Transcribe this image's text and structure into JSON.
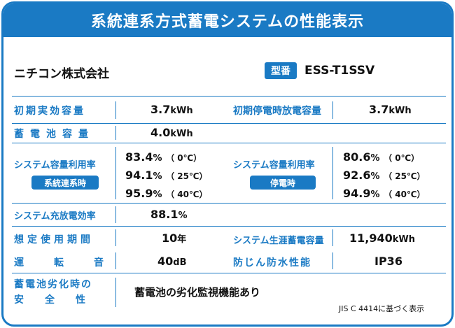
{
  "title": "系統連系方式蓄電システムの性能表示",
  "company": "ニチコン株式会社",
  "model": {
    "badge": "型番",
    "value": "ESS-T1SSV"
  },
  "initial_capacity": {
    "label": "初期実効容量",
    "value": "3.7",
    "unit": "kWh"
  },
  "initial_outage_capacity": {
    "label": "初期停電時放電容量",
    "value": "3.7",
    "unit": "kWh"
  },
  "storage_capacity": {
    "label": "蓄電池容量",
    "value": "4.0",
    "unit": "kWh"
  },
  "utilization_grid": {
    "label": "システム容量利用率",
    "badge": "系統連系時",
    "rows": [
      {
        "value": "83.4",
        "unit": "%",
        "temp": "（ 0℃）"
      },
      {
        "value": "94.1",
        "unit": "%",
        "temp": "（ 25℃）"
      },
      {
        "value": "95.9",
        "unit": "%",
        "temp": "（ 40℃）"
      }
    ]
  },
  "utilization_outage": {
    "label": "システム容量利用率",
    "badge": "停電時",
    "rows": [
      {
        "value": "80.6",
        "unit": "%",
        "temp": "（ 0℃）"
      },
      {
        "value": "92.6",
        "unit": "%",
        "temp": "（ 25℃）"
      },
      {
        "value": "94.9",
        "unit": "%",
        "temp": "（ 40℃）"
      }
    ]
  },
  "charge_efficiency": {
    "label": "システム充放電効率",
    "value": "88.1",
    "unit": "%"
  },
  "service_life": {
    "label": "想定使用期間",
    "value": "10",
    "unit": "年"
  },
  "lifetime_capacity": {
    "label": "システム生涯蓄電容量",
    "value": "11,940",
    "unit": "kWh"
  },
  "noise": {
    "label": "運転音",
    "value": "40",
    "unit": "dB"
  },
  "protection": {
    "label": "防じん防水性能",
    "value": "IP36"
  },
  "safety": {
    "label_line1": "蓄電池劣化時の",
    "label_line2": "安全性",
    "value": "蓄電池の劣化監視機能あり"
  },
  "footnote": "JIS C 4414に基づく表示",
  "colors": {
    "accent": "#1a7ac4",
    "text": "#111111"
  }
}
